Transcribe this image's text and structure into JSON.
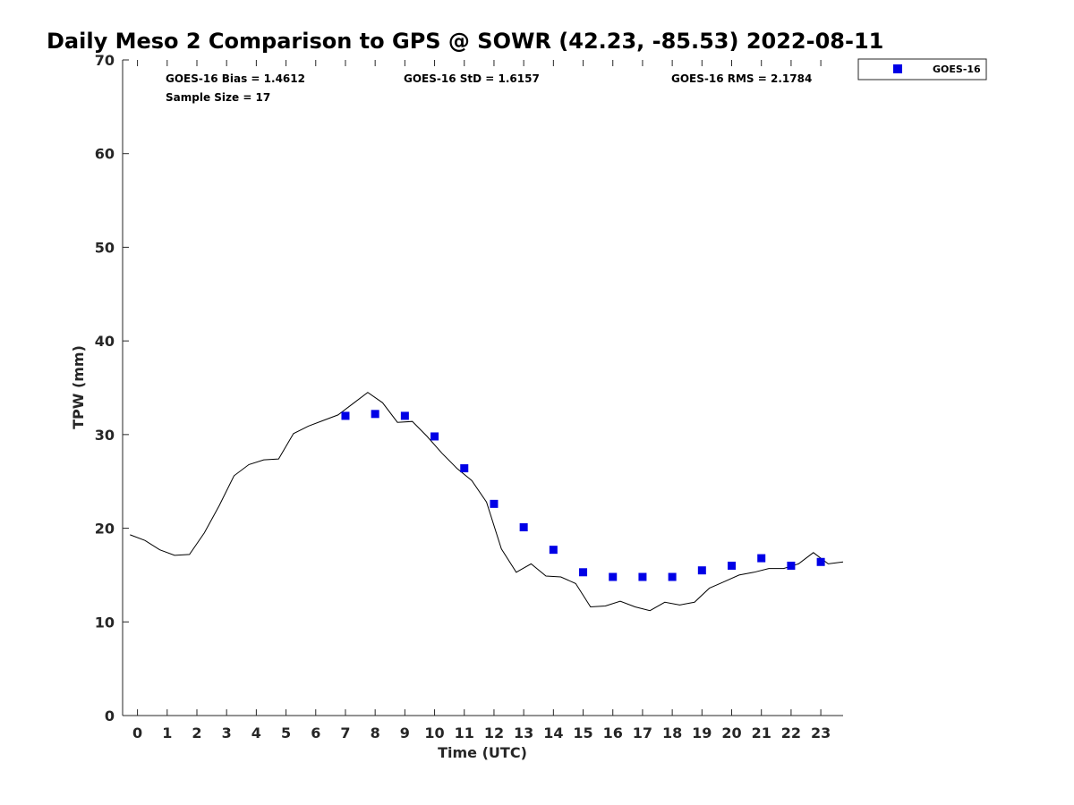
{
  "chart_data": {
    "type": "scatter",
    "title": "Daily Meso 2 Comparison to GPS @ SOWR (42.23, -85.53) 2022-08-11",
    "xlabel": "Time (UTC)",
    "ylabel": "TPW (mm)",
    "xlim": [
      -0.5,
      23.75
    ],
    "ylim": [
      0,
      70
    ],
    "x_ticks": [
      "0",
      "1",
      "2",
      "3",
      "4",
      "5",
      "6",
      "7",
      "8",
      "9",
      "10",
      "11",
      "12",
      "13",
      "14",
      "15",
      "16",
      "17",
      "18",
      "19",
      "20",
      "21",
      "22",
      "23"
    ],
    "y_ticks": [
      "0",
      "10",
      "20",
      "30",
      "40",
      "50",
      "60",
      "70"
    ],
    "grid": false,
    "legend_position": "top-right outside",
    "stats": {
      "bias": "GOES-16 Bias = 1.4612",
      "std": "GOES-16 StD = 1.6157",
      "rms": "GOES-16 RMS = 2.1784",
      "sample": "Sample Size = 17"
    },
    "series": [
      {
        "kind": "line",
        "color": "#000000",
        "x": [
          -0.25,
          0.25,
          0.75,
          1.25,
          1.75,
          2.25,
          2.75,
          3.25,
          3.75,
          4.25,
          4.75,
          5.25,
          5.75,
          6.25,
          6.75,
          7.25,
          7.75,
          8.25,
          8.75,
          9.25,
          9.75,
          10.25,
          10.75,
          11.25,
          11.75,
          12.25,
          12.75,
          13.25,
          13.75,
          14.25,
          14.75,
          15.25,
          15.75,
          16.25,
          16.75,
          17.25,
          17.75,
          18.25,
          18.75,
          19.25,
          19.75,
          20.25,
          20.75,
          21.25,
          21.75,
          22.25,
          22.75,
          23.25,
          23.75
        ],
        "y": [
          19.3,
          18.7,
          17.7,
          17.1,
          17.2,
          19.5,
          22.4,
          25.6,
          26.8,
          27.3,
          27.4,
          30.1,
          30.9,
          31.5,
          32.1,
          33.3,
          34.5,
          33.4,
          31.3,
          31.4,
          29.8,
          28.0,
          26.4,
          25.1,
          22.8,
          17.8,
          15.3,
          16.2,
          14.9,
          14.8,
          14.1,
          11.6,
          11.7,
          12.2,
          11.6,
          11.2,
          12.1,
          11.8,
          12.1,
          13.6,
          14.3,
          15.0,
          15.3,
          15.7,
          15.7,
          16.2,
          17.4,
          16.2,
          16.4
        ]
      },
      {
        "name": "GOES-16",
        "kind": "marker",
        "marker": "square",
        "color": "#0000e6",
        "x": [
          7,
          8,
          9,
          10,
          11,
          12,
          13,
          14,
          15,
          16,
          17,
          18,
          19,
          20,
          21,
          22,
          23
        ],
        "y": [
          32.0,
          32.2,
          32.0,
          29.8,
          26.4,
          22.6,
          20.1,
          17.7,
          15.3,
          14.8,
          14.8,
          14.8,
          15.5,
          16.0,
          16.8,
          16.0,
          16.4
        ]
      }
    ]
  }
}
